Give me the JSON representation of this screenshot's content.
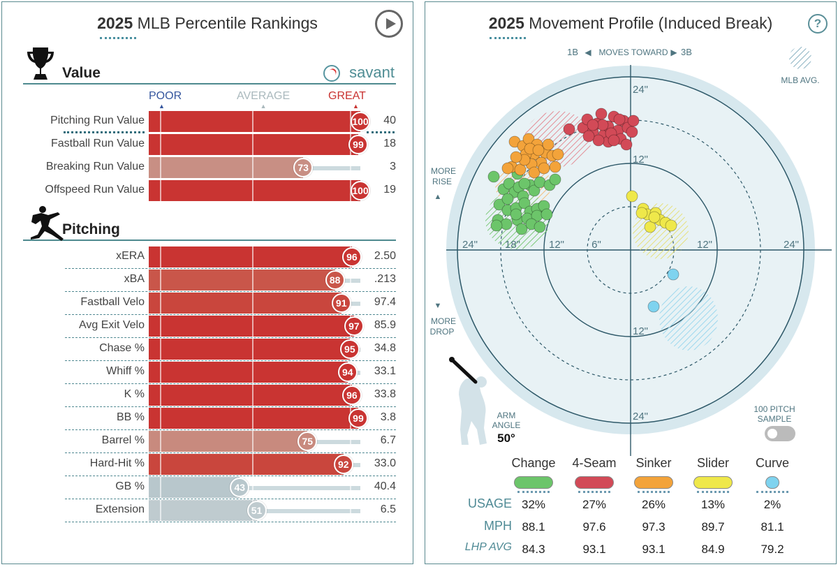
{
  "left": {
    "title_year": "2025",
    "title_text": "MLB Percentile Rankings",
    "value_section": "Value",
    "brand": "savant",
    "scale": {
      "poor": "POOR",
      "average": "AVERAGE",
      "great": "GREAT"
    },
    "pitching_section": "Pitching",
    "value_rows": [
      {
        "label": "Pitching Run Value",
        "pct": "100",
        "value": "40",
        "color": "#c93432"
      },
      {
        "label": "Fastball Run Value",
        "pct": "99",
        "value": "18",
        "color": "#c93432"
      },
      {
        "label": "Breaking Run Value",
        "pct": "73",
        "value": "3",
        "color": "#c88f84"
      },
      {
        "label": "Offspeed Run Value",
        "pct": "100",
        "value": "19",
        "color": "#c93432"
      }
    ],
    "pitching_rows": [
      {
        "label": "xERA",
        "pct": "96",
        "value": "2.50",
        "color": "#c93432"
      },
      {
        "label": "xBA",
        "pct": "88",
        "value": ".213",
        "color": "#c9564a"
      },
      {
        "label": "Fastball Velo",
        "pct": "91",
        "value": "97.4",
        "color": "#c9463d"
      },
      {
        "label": "Avg Exit Velo",
        "pct": "97",
        "value": "85.9",
        "color": "#c93432"
      },
      {
        "label": "Chase %",
        "pct": "95",
        "value": "34.8",
        "color": "#c93432"
      },
      {
        "label": "Whiff %",
        "pct": "94",
        "value": "33.1",
        "color": "#c93432"
      },
      {
        "label": "K %",
        "pct": "96",
        "value": "33.8",
        "color": "#c93432"
      },
      {
        "label": "BB %",
        "pct": "99",
        "value": "3.8",
        "color": "#c93432"
      },
      {
        "label": "Barrel %",
        "pct": "75",
        "value": "6.7",
        "color": "#c88a7e"
      },
      {
        "label": "Hard-Hit %",
        "pct": "92",
        "value": "33.0",
        "color": "#c9463d"
      },
      {
        "label": "GB %",
        "pct": "43",
        "value": "40.4",
        "color": "#b8c7cc"
      },
      {
        "label": "Extension",
        "pct": "51",
        "value": "6.5",
        "color": "#bfcbcf"
      }
    ]
  },
  "right": {
    "title_year": "2025",
    "title_text": "Movement Profile (Induced Break)",
    "help": "?",
    "moves_toward": {
      "left": "1B",
      "center": "MOVES TOWARD",
      "right": "3B"
    },
    "mlb_avg": "MLB AVG.",
    "more_rise": [
      "MORE",
      "RISE"
    ],
    "more_drop": [
      "MORE",
      "DROP"
    ],
    "ring_labels": {
      "top24": "24\"",
      "top12": "12\"",
      "bottom12": "12\"",
      "bottom24": "24\"",
      "left24": "24\"",
      "left18": "18\"",
      "left12": "12\"",
      "left6": "6\"",
      "right12": "12\"",
      "right24": "24\""
    },
    "arm_angle_label": [
      "ARM",
      "ANGLE"
    ],
    "arm_angle_value": "50°",
    "sample_label": [
      "100 PITCH",
      "SAMPLE"
    ],
    "pitches": [
      {
        "name": "Change",
        "color": "#6cc56a",
        "usage": "32%",
        "mph": "88.1",
        "lhp_avg": "84.3"
      },
      {
        "name": "4-Seam",
        "color": "#d24a57",
        "usage": "27%",
        "mph": "97.6",
        "lhp_avg": "93.1"
      },
      {
        "name": "Sinker",
        "color": "#f3a33a",
        "usage": "26%",
        "mph": "97.3",
        "lhp_avg": "93.1"
      },
      {
        "name": "Slider",
        "color": "#efe84a",
        "usage": "13%",
        "mph": "89.7",
        "lhp_avg": "84.9"
      },
      {
        "name": "Curve",
        "color": "#7fd3ef",
        "usage": "2%",
        "mph": "81.1",
        "lhp_avg": "79.2"
      }
    ],
    "table_rows": {
      "usage": "USAGE",
      "mph": "MPH",
      "lhp": "LHP AVG"
    }
  }
}
